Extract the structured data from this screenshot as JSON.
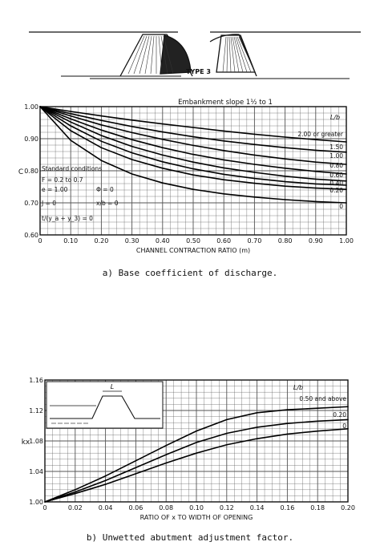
{
  "sketch": {
    "label": "TYPE 3"
  },
  "captions": {
    "a": "a) Base coefficient of discharge.",
    "b": "b) Unwetted abutment adjustment factor."
  },
  "chart_data": [
    {
      "type": "line",
      "title": "Embankment slope 1½ to 1",
      "xlabel": "CHANNEL CONTRACTION RATIO (m)",
      "ylabel": "C",
      "xlim": [
        0,
        1
      ],
      "ylim": [
        0.6,
        1.0
      ],
      "x_ticks": [
        "0",
        "0.10",
        "0.20",
        "0.30",
        "0.40",
        "0.50",
        "0.60",
        "0.70",
        "0.80",
        "0.90",
        "1.00"
      ],
      "y_ticks": [
        "0.60",
        "0.70",
        "0.80",
        "0.90",
        "1.00"
      ],
      "grid": true,
      "curve_header": "L/b",
      "annotations": [
        "Standard conditions",
        "F = 0.2 to 0.7",
        "e = 1.00",
        "Φ = 0",
        "J = 0",
        "x/b = 0",
        "t/(y_a + y_3) = 0"
      ],
      "x": [
        0,
        0.1,
        0.2,
        0.3,
        0.4,
        0.5,
        0.6,
        0.7,
        0.8,
        0.9,
        1.0
      ],
      "series": [
        {
          "name": "2.00 or greater",
          "values": [
            1.0,
            0.985,
            0.971,
            0.958,
            0.946,
            0.935,
            0.924,
            0.914,
            0.905,
            0.897,
            0.89
          ]
        },
        {
          "name": "1.50",
          "values": [
            1.0,
            0.978,
            0.957,
            0.938,
            0.921,
            0.906,
            0.893,
            0.882,
            0.872,
            0.864,
            0.858
          ]
        },
        {
          "name": "1.00",
          "values": [
            1.0,
            0.971,
            0.943,
            0.919,
            0.898,
            0.879,
            0.863,
            0.849,
            0.837,
            0.827,
            0.82
          ]
        },
        {
          "name": "0.80",
          "values": [
            1.0,
            0.962,
            0.927,
            0.897,
            0.872,
            0.851,
            0.834,
            0.82,
            0.808,
            0.798,
            0.79
          ]
        },
        {
          "name": "0.60",
          "values": [
            1.0,
            0.952,
            0.91,
            0.876,
            0.849,
            0.827,
            0.809,
            0.795,
            0.783,
            0.774,
            0.768
          ]
        },
        {
          "name": "0.40",
          "values": [
            1.0,
            0.94,
            0.892,
            0.856,
            0.828,
            0.806,
            0.789,
            0.776,
            0.766,
            0.759,
            0.755
          ]
        },
        {
          "name": "0.20",
          "values": [
            1.0,
            0.925,
            0.872,
            0.835,
            0.808,
            0.787,
            0.772,
            0.761,
            0.752,
            0.746,
            0.742
          ]
        },
        {
          "name": "0",
          "values": [
            1.0,
            0.895,
            0.832,
            0.79,
            0.762,
            0.742,
            0.728,
            0.718,
            0.71,
            0.704,
            0.7
          ]
        }
      ]
    },
    {
      "type": "line",
      "title": "",
      "xlabel": "RATIO OF x TO WIDTH OF OPENING",
      "ylabel": "kx",
      "xlim": [
        0,
        0.2
      ],
      "ylim": [
        1.0,
        1.16
      ],
      "x_ticks": [
        "0",
        "0.02",
        "0.04",
        "0.06",
        "0.08",
        "0.10",
        "0.12",
        "0.14",
        "0.16",
        "0.18",
        "0.20"
      ],
      "y_ticks": [
        "1.00",
        "1.04",
        "1.08",
        "1.12",
        "1.16"
      ],
      "grid": true,
      "curve_header": "L/b",
      "inset_label": "L",
      "x": [
        0,
        0.02,
        0.04,
        0.06,
        0.08,
        0.1,
        0.12,
        0.14,
        0.16,
        0.18,
        0.2
      ],
      "series": [
        {
          "name": "0.50 and above",
          "values": [
            1.0,
            1.016,
            1.034,
            1.054,
            1.074,
            1.093,
            1.108,
            1.117,
            1.121,
            1.123,
            1.125
          ]
        },
        {
          "name": "0.20",
          "values": [
            1.0,
            1.013,
            1.028,
            1.045,
            1.062,
            1.078,
            1.09,
            1.098,
            1.103,
            1.106,
            1.108
          ]
        },
        {
          "name": "0",
          "values": [
            1.0,
            1.011,
            1.023,
            1.037,
            1.051,
            1.064,
            1.075,
            1.083,
            1.089,
            1.093,
            1.096
          ]
        }
      ]
    }
  ]
}
